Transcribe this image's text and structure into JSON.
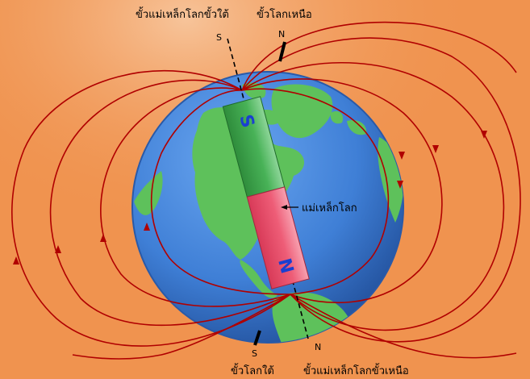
{
  "labels": {
    "magnetic_south_pole": "ขั้วแม่เหล็กโลกขั้วใต้",
    "geographic_north_pole": "ขั้วโลกเหนือ",
    "magnet": "แม่เหล็กโลก",
    "geographic_south_pole": "ขั้วโลกใต้",
    "magnetic_north_pole": "ขั้วแม่เหล็กโลกขั้วเหนือ",
    "axis_s_top": "S",
    "axis_n_top": "N",
    "axis_s_bottom": "S",
    "axis_n_bottom": "N",
    "bar_s": "S",
    "bar_n": "N"
  },
  "colors": {
    "background": "#f0934f",
    "ocean": "#3f7fd6",
    "land": "#5ec15b",
    "field_line": "#b00000",
    "bar_south": "#3aa34a",
    "bar_north": "#e8506a",
    "bar_letter": "#1a3fd0"
  }
}
